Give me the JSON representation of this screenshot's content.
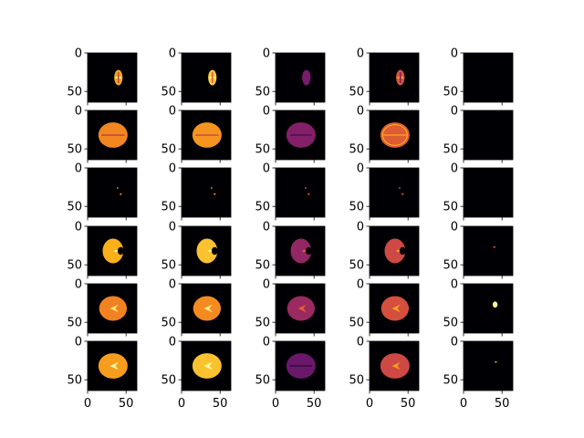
{
  "chart_data": {
    "type": "heatmap",
    "layout": {
      "rows": 6,
      "cols": 5
    },
    "colormap": "inferno",
    "colormap_stops": [
      "#000004",
      "#320a5e",
      "#781c6d",
      "#bc3754",
      "#ed6925",
      "#fbb61a",
      "#fcffa4"
    ],
    "xlim": [
      0,
      64
    ],
    "ylim": [
      64,
      0
    ],
    "x_ticks": [
      0,
      50
    ],
    "y_ticks": [
      0,
      50
    ],
    "x_tick_labels": [
      "0",
      "50"
    ],
    "y_tick_labels": [
      "0",
      "50"
    ],
    "grid": false,
    "legend": "none",
    "panels": [
      [
        {
          "shape": "small",
          "level": 0.8,
          "mark": "cross"
        },
        {
          "shape": "small",
          "level": 0.88,
          "mark": "cross"
        },
        {
          "shape": "small",
          "level": 0.33,
          "mark": "none"
        },
        {
          "shape": "small",
          "level": 0.6,
          "mark": "cross"
        },
        {
          "shape": "none",
          "level": 0,
          "mark": "none"
        }
      ],
      [
        {
          "shape": "large",
          "level": 0.73,
          "mark": "midline"
        },
        {
          "shape": "large",
          "level": 0.76,
          "mark": "midline"
        },
        {
          "shape": "large",
          "level": 0.36,
          "mark": "faint"
        },
        {
          "shape": "large",
          "level": 0.62,
          "mark": "rings"
        },
        {
          "shape": "none",
          "level": 0,
          "mark": "none"
        }
      ],
      [
        {
          "shape": "dots",
          "level": 0.7,
          "mark": "none"
        },
        {
          "shape": "dots",
          "level": 0.7,
          "mark": "none"
        },
        {
          "shape": "dots",
          "level": 0.6,
          "mark": "none"
        },
        {
          "shape": "dots",
          "level": 0.6,
          "mark": "none"
        },
        {
          "shape": "none",
          "level": 0,
          "mark": "none"
        }
      ],
      [
        {
          "shape": "medium",
          "level": 0.82,
          "mark": "notch"
        },
        {
          "shape": "medium",
          "level": 0.86,
          "mark": "notch"
        },
        {
          "shape": "medium",
          "level": 0.4,
          "mark": "notch"
        },
        {
          "shape": "medium",
          "level": 0.56,
          "mark": "notch"
        },
        {
          "shape": "tiny",
          "level": 0.55,
          "mark": "none"
        }
      ],
      [
        {
          "shape": "large2",
          "level": 0.72,
          "mark": "ventricle"
        },
        {
          "shape": "large2",
          "level": 0.74,
          "mark": "ventricle"
        },
        {
          "shape": "large2",
          "level": 0.42,
          "mark": "ventricle"
        },
        {
          "shape": "large2",
          "level": 0.58,
          "mark": "ventricle"
        },
        {
          "shape": "blob",
          "level": 0.97,
          "mark": "none"
        }
      ],
      [
        {
          "shape": "large",
          "level": 0.78,
          "mark": "ventricle"
        },
        {
          "shape": "large",
          "level": 0.86,
          "mark": "ventricle"
        },
        {
          "shape": "large",
          "level": 0.3,
          "mark": "faint"
        },
        {
          "shape": "large",
          "level": 0.56,
          "mark": "ventricle"
        },
        {
          "shape": "speck",
          "level": 0.9,
          "mark": "none"
        }
      ]
    ]
  }
}
